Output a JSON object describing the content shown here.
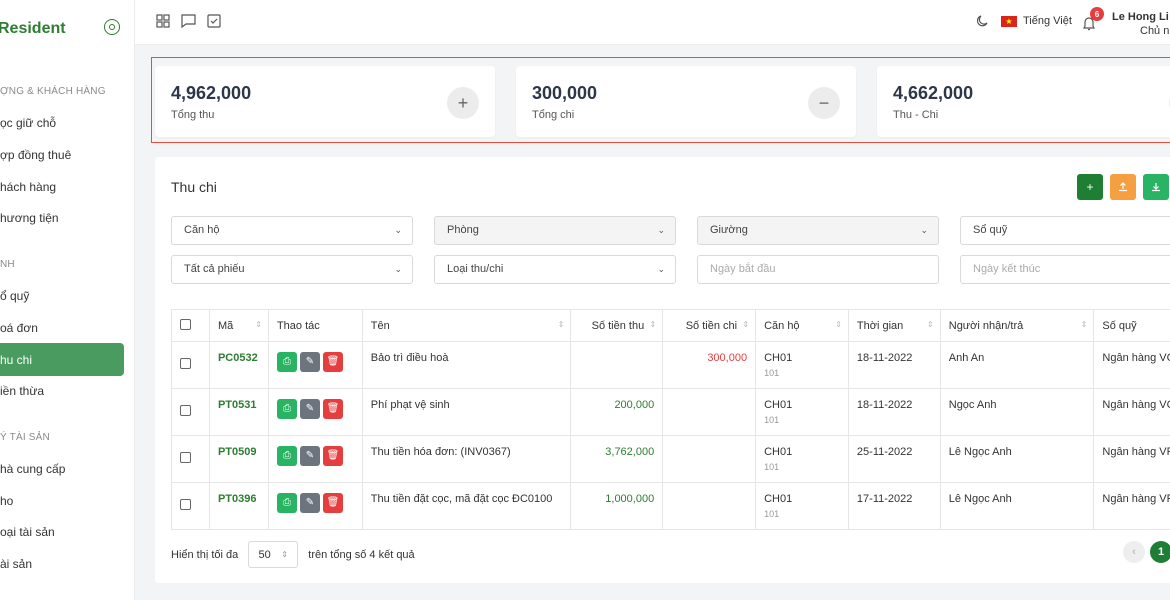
{
  "brand": {
    "name": "Resident"
  },
  "sidebar": {
    "sections": [
      {
        "label": "ỢNG & KHÁCH HÀNG",
        "items": [
          "ọc giữ chỗ",
          "ợp đồng thuê",
          "hách hàng",
          "hương tiện"
        ]
      },
      {
        "label": "NH",
        "items": [
          "ổ quỹ",
          "oá đơn",
          "hu chi",
          "iền thừa"
        ]
      },
      {
        "label": "Ý TÀI SẢN",
        "items": [
          "hà cung cấp",
          "ho",
          "oại tài sản",
          "ài sản"
        ]
      }
    ],
    "active": "hu chi"
  },
  "topbar": {
    "language": "Tiếng Việt",
    "notif_count": "6",
    "user_name": "Le Hong Li",
    "user_role": "Chủ nh"
  },
  "summary": [
    {
      "value": "4,962,000",
      "label": "Tổng thu",
      "icon": "plus-icon"
    },
    {
      "value": "300,000",
      "label": "Tổng chi",
      "icon": "minus-icon"
    },
    {
      "value": "4,662,000",
      "label": "Thu - Chi",
      "icon": "equal-icon"
    }
  ],
  "panel": {
    "title": "Thu chi"
  },
  "filters": {
    "can_ho": "Căn hộ",
    "phong": "Phòng",
    "giuong": "Giường",
    "so_quy": "Sổ quỹ",
    "phieu": "Tất cả phiếu",
    "loai": "Loại thu/chi",
    "start_placeholder": "Ngày bắt đầu",
    "end_placeholder": "Ngày kết thúc"
  },
  "table": {
    "headers": [
      "Mã",
      "Thao tác",
      "Tên",
      "Số tiền thu",
      "Số tiền chi",
      "Căn hộ",
      "Thời gian",
      "Người nhận/trả",
      "Số quỹ"
    ],
    "rows": [
      {
        "code": "PC0532",
        "name": "Bảo trì điều hoà",
        "income": "",
        "expense": "300,000",
        "apt": "CH01",
        "room": "101",
        "date": "18-11-2022",
        "person": "Anh An",
        "fund": "Ngân hàng VCB"
      },
      {
        "code": "PT0531",
        "name": "Phí phạt vệ sinh",
        "income": "200,000",
        "expense": "",
        "apt": "CH01",
        "room": "101",
        "date": "18-11-2022",
        "person": "Ngọc Anh",
        "fund": "Ngân hàng VCB"
      },
      {
        "code": "PT0509",
        "name": "Thu tiền hóa đơn: (INV0367)",
        "income": "3,762,000",
        "expense": "",
        "apt": "CH01",
        "room": "101",
        "date": "25-11-2022",
        "person": "Lê Ngọc Anh",
        "fund": "Ngân hàng VPB"
      },
      {
        "code": "PT0396",
        "name": "Thu tiền đặt cọc, mã đặt cọc ĐC0100",
        "income": "1,000,000",
        "expense": "",
        "apt": "CH01",
        "room": "101",
        "date": "17-11-2022",
        "person": "Lê Ngọc Anh",
        "fund": "Ngân hàng VPB"
      }
    ]
  },
  "footer": {
    "show_label": "Hiển thị tối đa",
    "page_size": "50",
    "total_label": "trên tổng số 4 kết quả",
    "page": "1"
  }
}
